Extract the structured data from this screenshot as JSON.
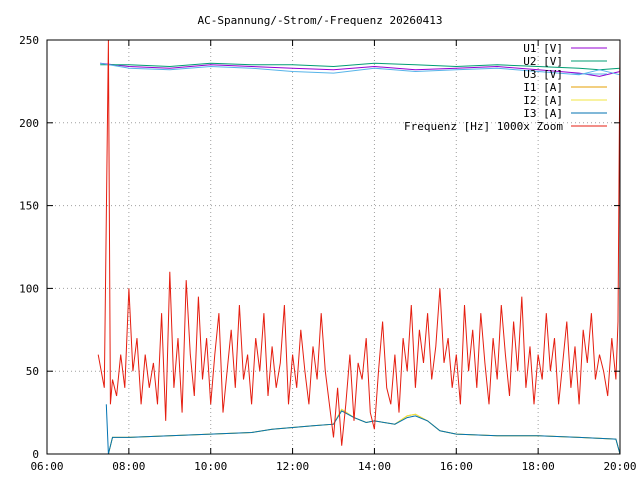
{
  "chart_data": {
    "type": "line",
    "title": "AC-Spannung/-Strom/-Frequenz 20260413",
    "xlabel": "",
    "ylabel": "",
    "x_range_hours": [
      6,
      20
    ],
    "ylim": [
      0,
      250
    ],
    "y_ticks": [
      0,
      50,
      100,
      150,
      200,
      250
    ],
    "x_ticks": [
      {
        "h": 6,
        "label": "06:00"
      },
      {
        "h": 8,
        "label": "08:00"
      },
      {
        "h": 10,
        "label": "10:00"
      },
      {
        "h": 12,
        "label": "12:00"
      },
      {
        "h": 14,
        "label": "14:00"
      },
      {
        "h": 16,
        "label": "16:00"
      },
      {
        "h": 18,
        "label": "18:00"
      },
      {
        "h": 20,
        "label": "20:00"
      }
    ],
    "grid": true,
    "legend_position": "top-right",
    "series": [
      {
        "name": "U1 [V]",
        "color": "#9400d3",
        "x": [
          7.3,
          8.0,
          9.0,
          10.0,
          11.0,
          12.0,
          13.0,
          14.0,
          15.0,
          16.0,
          17.0,
          18.0,
          19.0,
          19.5,
          20.0
        ],
        "y": [
          236,
          234,
          233,
          235,
          234,
          233,
          232,
          234,
          232,
          233,
          234,
          232,
          230,
          228,
          231
        ]
      },
      {
        "name": "U2 [V]",
        "color": "#009e73",
        "x": [
          7.3,
          8.0,
          9.0,
          10.0,
          11.0,
          12.0,
          13.0,
          14.0,
          15.0,
          16.0,
          17.0,
          18.0,
          19.0,
          19.5,
          20.0
        ],
        "y": [
          235,
          235,
          234,
          236,
          235,
          235,
          234,
          236,
          235,
          234,
          235,
          234,
          233,
          232,
          233
        ]
      },
      {
        "name": "U3 [V]",
        "color": "#56b4e9",
        "x": [
          7.3,
          8.0,
          9.0,
          10.0,
          11.0,
          12.0,
          13.0,
          14.0,
          15.0,
          16.0,
          17.0,
          18.0,
          19.0,
          19.5,
          20.0
        ],
        "y": [
          236,
          233,
          232,
          234,
          233,
          231,
          230,
          233,
          231,
          232,
          233,
          231,
          229,
          232,
          229
        ]
      },
      {
        "name": "I1 [A]",
        "color": "#e69f00",
        "x": [
          7.5,
          7.6,
          8.0,
          9.0,
          10.0,
          11.0,
          11.5,
          12.0,
          12.5,
          13.0,
          13.2,
          13.5,
          13.8,
          14.0,
          14.5,
          14.8,
          15.0,
          15.3,
          15.6,
          16.0,
          17.0,
          18.0,
          19.0,
          19.9,
          20.0
        ],
        "y": [
          0,
          10,
          10,
          11,
          12,
          13,
          15,
          16,
          17,
          18,
          27,
          22,
          19,
          20,
          18,
          23,
          24,
          20,
          14,
          12,
          11,
          11,
          10,
          9,
          0
        ]
      },
      {
        "name": "I2 [A]",
        "color": "#f0e442",
        "x": [
          7.5,
          7.6,
          8.0,
          9.0,
          10.0,
          11.0,
          11.5,
          12.0,
          12.5,
          13.0,
          13.2,
          13.5,
          13.8,
          14.0,
          14.5,
          14.8,
          15.0,
          15.3,
          15.6,
          16.0,
          17.0,
          18.0,
          19.0,
          19.9,
          20.0
        ],
        "y": [
          0,
          10,
          10,
          11,
          12,
          13,
          15,
          16,
          17,
          18,
          27,
          22,
          19,
          20,
          18,
          23,
          24,
          20,
          14,
          12,
          11,
          11,
          10,
          9,
          0
        ]
      },
      {
        "name": "I3 [A]",
        "color": "#0072b2",
        "x": [
          7.45,
          7.5,
          7.6,
          8.0,
          9.0,
          10.0,
          11.0,
          11.5,
          12.0,
          12.5,
          13.0,
          13.2,
          13.5,
          13.8,
          14.0,
          14.5,
          14.8,
          15.0,
          15.3,
          15.6,
          16.0,
          17.0,
          18.0,
          19.0,
          19.9,
          20.0
        ],
        "y": [
          30,
          0,
          10,
          10,
          11,
          12,
          13,
          15,
          16,
          17,
          18,
          26,
          22,
          19,
          20,
          18,
          22,
          23,
          20,
          14,
          12,
          11,
          11,
          10,
          9,
          0
        ]
      },
      {
        "name": "Frequenz [Hz] 1000x Zoom",
        "color": "#e51e10",
        "x": [
          7.25,
          7.4,
          7.5,
          7.55,
          7.6,
          7.7,
          7.8,
          7.9,
          8.0,
          8.1,
          8.2,
          8.3,
          8.4,
          8.5,
          8.6,
          8.7,
          8.8,
          8.9,
          9.0,
          9.1,
          9.2,
          9.3,
          9.4,
          9.5,
          9.6,
          9.7,
          9.8,
          9.9,
          10.0,
          10.1,
          10.2,
          10.3,
          10.4,
          10.5,
          10.6,
          10.7,
          10.8,
          10.9,
          11.0,
          11.1,
          11.2,
          11.3,
          11.4,
          11.5,
          11.6,
          11.7,
          11.8,
          11.9,
          12.0,
          12.1,
          12.2,
          12.3,
          12.4,
          12.5,
          12.6,
          12.7,
          12.8,
          12.9,
          13.0,
          13.1,
          13.2,
          13.3,
          13.4,
          13.5,
          13.6,
          13.7,
          13.8,
          13.9,
          14.0,
          14.1,
          14.2,
          14.3,
          14.4,
          14.5,
          14.6,
          14.7,
          14.8,
          14.9,
          15.0,
          15.1,
          15.2,
          15.3,
          15.4,
          15.5,
          15.6,
          15.7,
          15.8,
          15.9,
          16.0,
          16.1,
          16.2,
          16.3,
          16.4,
          16.5,
          16.6,
          16.7,
          16.8,
          16.9,
          17.0,
          17.1,
          17.2,
          17.3,
          17.4,
          17.5,
          17.6,
          17.7,
          17.8,
          17.9,
          18.0,
          18.1,
          18.2,
          18.3,
          18.4,
          18.5,
          18.6,
          18.7,
          18.8,
          18.9,
          19.0,
          19.1,
          19.2,
          19.3,
          19.4,
          19.5,
          19.6,
          19.7,
          19.8,
          19.9,
          19.95,
          20.0
        ],
        "y": [
          60,
          40,
          250,
          30,
          45,
          35,
          60,
          40,
          100,
          50,
          70,
          30,
          60,
          40,
          55,
          30,
          85,
          20,
          110,
          40,
          70,
          25,
          105,
          60,
          35,
          95,
          45,
          70,
          30,
          60,
          85,
          25,
          50,
          75,
          40,
          90,
          45,
          60,
          30,
          70,
          50,
          85,
          35,
          65,
          40,
          55,
          90,
          30,
          60,
          40,
          75,
          50,
          30,
          65,
          45,
          85,
          50,
          30,
          10,
          40,
          5,
          30,
          60,
          20,
          55,
          45,
          70,
          25,
          15,
          50,
          80,
          40,
          30,
          60,
          25,
          70,
          50,
          90,
          40,
          75,
          55,
          85,
          45,
          65,
          100,
          55,
          70,
          40,
          60,
          30,
          90,
          50,
          75,
          40,
          85,
          55,
          30,
          70,
          45,
          90,
          60,
          35,
          80,
          50,
          95,
          40,
          65,
          30,
          60,
          45,
          85,
          50,
          70,
          30,
          55,
          80,
          40,
          65,
          30,
          75,
          55,
          85,
          45,
          60,
          50,
          35,
          70,
          45,
          80,
          250
        ]
      }
    ]
  }
}
